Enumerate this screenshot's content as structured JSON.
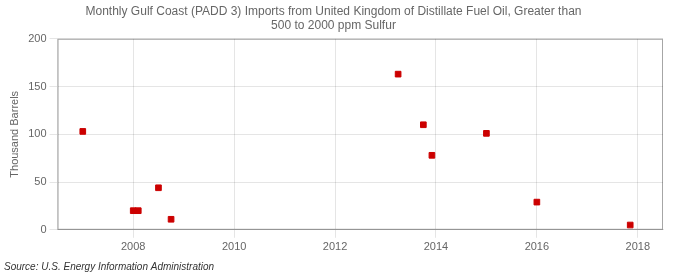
{
  "chart_data": {
    "type": "scatter",
    "title": "Monthly Gulf Coast (PADD 3) Imports from United Kingdom of Distillate Fuel Oil, Greater than\n500 to 2000 ppm Sulfur",
    "ylabel": "Thousand Barrels",
    "annotations": [
      "Source: U.S. Energy Information Administration"
    ],
    "x": [
      2007.0,
      2008.0,
      2008.1,
      2008.5,
      2008.75,
      2013.25,
      2013.75,
      2013.92,
      2015.0,
      2016.0,
      2017.85
    ],
    "values": [
      103,
      20,
      20,
      44,
      11,
      163,
      110,
      78,
      101,
      29,
      5
    ],
    "color": "#cc0000",
    "marker": "square",
    "xlim": [
      2006.5,
      2018.5
    ],
    "ylim": [
      0,
      200
    ],
    "xticks": [
      2008,
      2010,
      2012,
      2014,
      2016,
      2018
    ],
    "yticks": [
      0,
      50,
      100,
      150,
      200
    ],
    "grid": true
  }
}
